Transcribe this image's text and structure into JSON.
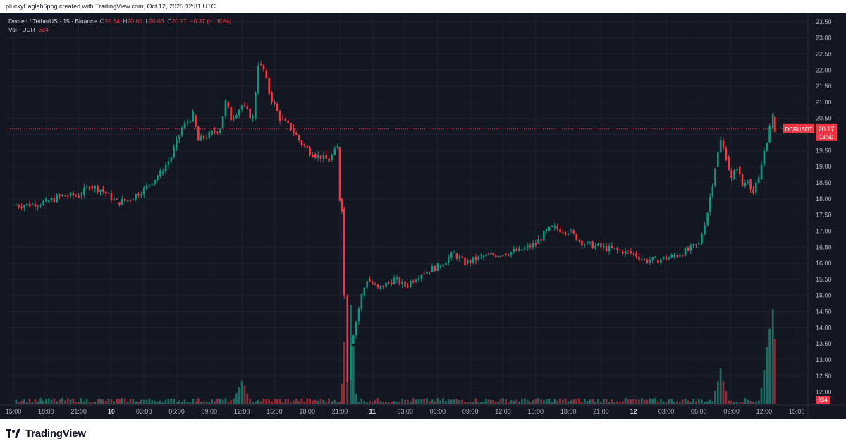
{
  "header": {
    "credit": "pluckyEagleb6ppg created with TradingView.com, Oct 12, 2025 12:31 UTC"
  },
  "legend": {
    "symbol": "Decred / TetherUS · 15 · Binance",
    "open_label": "O",
    "open": "20.54",
    "high_label": "H",
    "high": "20.60",
    "low_label": "L",
    "low": "20.03",
    "close_label": "C",
    "close": "20.17",
    "change": "−0.37 (−1.80%)",
    "volume_label": "Vol · DCR",
    "volume": "634"
  },
  "price_badge": {
    "symbol": "DCRUSDT",
    "price": "20.17",
    "countdown": "13:50"
  },
  "volume_badge": "634",
  "footer": {
    "brand": "TradingView"
  },
  "colors": {
    "background": "#131722",
    "up": "#089981",
    "down": "#f23645",
    "up_volume": "#1f6b62",
    "down_volume": "#8c2f39",
    "axis_text": "#b2b5be",
    "grid": "#1e222d"
  },
  "chart_data": {
    "type": "candlestick",
    "symbol": "DCRUSDT",
    "interval": "15",
    "last_price": 20.17,
    "y_axis": {
      "ticks": [
        "23.50",
        "23.00",
        "22.50",
        "22.00",
        "21.50",
        "21.00",
        "20.50",
        "20.00",
        "19.50",
        "19.00",
        "18.50",
        "18.00",
        "17.50",
        "17.00",
        "16.50",
        "16.00",
        "15.50",
        "15.00",
        "14.50",
        "14.00",
        "13.50",
        "13.00",
        "12.50",
        "12.00"
      ],
      "ylim": [
        11.75,
        23.65
      ]
    },
    "x_axis": {
      "ticks": [
        "15:00",
        "18:00",
        "21:00",
        "10",
        "03:00",
        "06:00",
        "09:00",
        "12:00",
        "15:00",
        "18:00",
        "21:00",
        "11",
        "03:00",
        "06:00",
        "09:00",
        "12:00",
        "15:00",
        "18:00",
        "21:00",
        "12",
        "03:00",
        "06:00",
        "09:00",
        "12:00",
        "15:00"
      ],
      "bold_ticks": [
        "10",
        "11",
        "12"
      ]
    },
    "price_path": [
      [
        15.0,
        17.8
      ],
      [
        16.5,
        17.82
      ],
      [
        18.0,
        17.9
      ],
      [
        19.5,
        18.1
      ],
      [
        21.0,
        18.1
      ],
      [
        22.0,
        18.4
      ],
      [
        23.0,
        18.3
      ],
      [
        24.5,
        17.9
      ],
      [
        25.5,
        17.95
      ],
      [
        27.0,
        18.3
      ],
      [
        28.5,
        18.8
      ],
      [
        29.5,
        19.3
      ],
      [
        30.5,
        20.2
      ],
      [
        31.5,
        20.6
      ],
      [
        32.0,
        19.8
      ],
      [
        33.0,
        20.0
      ],
      [
        34.0,
        20.2
      ],
      [
        34.5,
        21.0
      ],
      [
        35.0,
        20.5
      ],
      [
        36.0,
        20.9
      ],
      [
        37.0,
        20.5
      ],
      [
        37.5,
        22.2
      ],
      [
        38.0,
        22.0
      ],
      [
        38.5,
        21.3
      ],
      [
        39.5,
        20.5
      ],
      [
        40.5,
        20.2
      ],
      [
        41.5,
        19.7
      ],
      [
        42.5,
        19.4
      ],
      [
        44.0,
        19.2
      ],
      [
        44.8,
        19.6
      ],
      [
        45.0,
        18.0
      ],
      [
        45.2,
        17.7
      ],
      [
        45.4,
        15.0
      ],
      [
        45.7,
        12.4
      ],
      [
        46.0,
        13.5
      ],
      [
        46.5,
        14.2
      ],
      [
        47.0,
        15.0
      ],
      [
        47.5,
        15.5
      ],
      [
        48.5,
        15.2
      ],
      [
        50.0,
        15.5
      ],
      [
        51.0,
        15.3
      ],
      [
        52.5,
        15.7
      ],
      [
        54.0,
        15.9
      ],
      [
        55.5,
        16.3
      ],
      [
        56.5,
        16.0
      ],
      [
        58.0,
        16.2
      ],
      [
        60.0,
        16.3
      ],
      [
        61.5,
        16.4
      ],
      [
        63.0,
        16.6
      ],
      [
        64.0,
        17.0
      ],
      [
        64.5,
        17.1
      ],
      [
        66.0,
        17.0
      ],
      [
        67.5,
        16.6
      ],
      [
        69.0,
        16.5
      ],
      [
        70.5,
        16.4
      ],
      [
        72.0,
        16.3
      ],
      [
        73.0,
        16.1
      ],
      [
        74.0,
        16.1
      ],
      [
        75.5,
        16.2
      ],
      [
        77.0,
        16.4
      ],
      [
        78.0,
        16.6
      ],
      [
        78.8,
        17.6
      ],
      [
        79.5,
        19.0
      ],
      [
        80.0,
        19.8
      ],
      [
        80.5,
        19.3
      ],
      [
        81.0,
        18.6
      ],
      [
        81.5,
        19.0
      ],
      [
        82.0,
        18.4
      ],
      [
        82.5,
        18.6
      ],
      [
        83.0,
        18.2
      ],
      [
        83.5,
        18.6
      ],
      [
        84.0,
        19.5
      ],
      [
        84.5,
        20.2
      ],
      [
        84.8,
        20.55
      ],
      [
        85.0,
        20.17
      ]
    ],
    "volume_spikes": [
      [
        36.0,
        900
      ],
      [
        45.7,
        2800
      ],
      [
        45.9,
        4200
      ],
      [
        80.0,
        1400
      ],
      [
        84.2,
        1800
      ],
      [
        84.8,
        3800
      ]
    ]
  }
}
